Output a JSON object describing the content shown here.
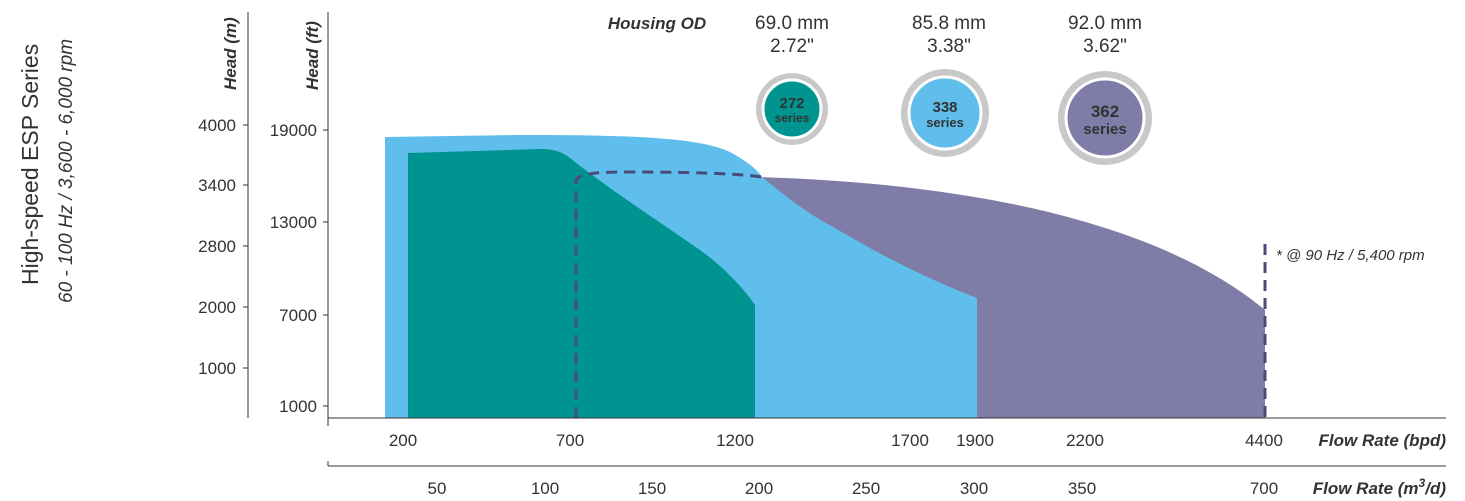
{
  "chart_data": {
    "type": "area",
    "title": "High-speed ESP Series",
    "subtitle": "60 - 100 Hz / 3,600 - 6,000 rpm",
    "y_left_label": "Head (m)",
    "y_right_label": "Head (ft)",
    "y_m_ticks": [
      "4000",
      "3400",
      "2800",
      "2000",
      "1000"
    ],
    "y_ft_ticks": [
      "19000",
      "13000",
      "7000",
      "1000"
    ],
    "x_bpd_label": "Flow Rate (bpd)",
    "x_bpd_ticks": [
      "200",
      "700",
      "1200",
      "1700",
      "1900",
      "2200",
      "4400"
    ],
    "x_m3d_label_main": "Flow Rate (m",
    "x_m3d_label_sup": "3",
    "x_m3d_label_end": "/d)",
    "x_m3d_ticks": [
      "50",
      "100",
      "150",
      "200",
      "250",
      "300",
      "350",
      "700"
    ],
    "housing_label": "Housing OD",
    "series": [
      {
        "name": "272",
        "sub": "series",
        "od_mm": "69.0 mm",
        "od_in": "2.72\"",
        "color": "#009490"
      },
      {
        "name": "338",
        "sub": "series",
        "od_mm": "85.8 mm",
        "od_in": "3.38\"",
        "color": "#5FBEEB"
      },
      {
        "name": "362",
        "sub": "series",
        "od_mm": "92.0 mm",
        "od_in": "3.62\"",
        "color": "#7F7DA7"
      }
    ],
    "annotation": "* @ 90 Hz / 5,400 rpm",
    "colors": {
      "ring": "#c8c8c8",
      "dash": "#4c4a7a",
      "axis": "#333333"
    }
  }
}
